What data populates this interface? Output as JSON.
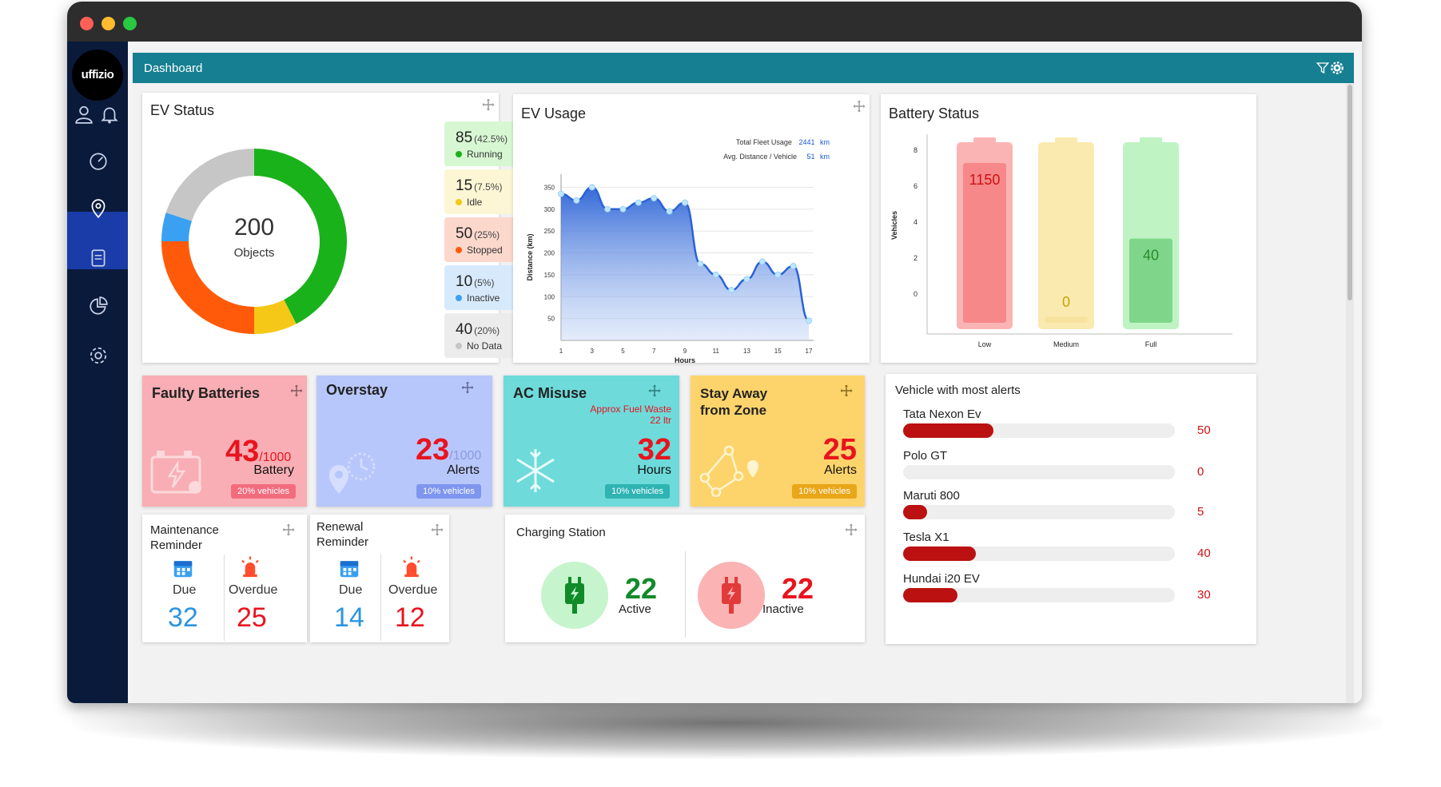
{
  "app": {
    "logo_text": "uffizio",
    "header_title": "Dashboard"
  },
  "colors": {
    "header": "#167f91",
    "sidebar": "#0a1a3a",
    "sidebar_active": "#1a3ca8"
  },
  "sidebar": {
    "items": [
      {
        "icon": "user-icon"
      },
      {
        "icon": "bell-icon"
      },
      {
        "icon": "speedometer-icon"
      },
      {
        "icon": "location-pin-icon",
        "active": true
      },
      {
        "icon": "report-icon"
      },
      {
        "icon": "pie-chart-icon"
      },
      {
        "icon": "gear-icon"
      }
    ]
  },
  "ev_status": {
    "title": "EV Status",
    "total": "200",
    "total_label": "Objects",
    "items": [
      {
        "count": "85",
        "pct": "(42.5%)",
        "label": "Running",
        "value": 85,
        "color": "#1ab21a",
        "bg": "#d7f7d3"
      },
      {
        "count": "15",
        "pct": "(7.5%)",
        "label": "Idle",
        "value": 15,
        "color": "#f5c818",
        "bg": "#fcf6d5"
      },
      {
        "count": "50",
        "pct": "(25%)",
        "label": "Stopped",
        "value": 50,
        "color": "#ff5a0a",
        "bg": "#fcd8cc"
      },
      {
        "count": "10",
        "pct": "(5%)",
        "label": "Inactive",
        "value": 10,
        "color": "#3aa0f2",
        "bg": "#d7eafc"
      },
      {
        "count": "40",
        "pct": "(20%)",
        "label": "No Data",
        "value": 40,
        "color": "#c6c6c6",
        "bg": "#ececec"
      }
    ]
  },
  "ev_usage": {
    "title": "EV Usage",
    "total_label": "Total Fleet Usage",
    "total_value": "2441",
    "total_unit": "km",
    "avg_label": "Avg. Distance / Vehicle",
    "avg_value": "51",
    "avg_unit": "km"
  },
  "battery_status": {
    "title": "Battery Status"
  },
  "faulty_batteries": {
    "title": "Faulty Batteries",
    "value": "43",
    "total": "/1000",
    "label": "Battery",
    "pill": "20% vehicles"
  },
  "overstay": {
    "title": "Overstay",
    "value": "23",
    "total": "/1000",
    "label": "Alerts",
    "pill": "10% vehicles"
  },
  "ac_misuse": {
    "title": "AC Misuse",
    "note1": "Approx Fuel Waste",
    "note2": "22 ltr",
    "value": "32",
    "label": "Hours",
    "pill": "10% vehicles"
  },
  "stay_away": {
    "title1": "Stay Away",
    "title2": "from Zone",
    "value": "25",
    "label": "Alerts",
    "pill": "10% vehicles"
  },
  "maintenance": {
    "title1": "Maintenance",
    "title2": "Reminder",
    "due_label": "Due",
    "due": "32",
    "overdue_label": "Overdue",
    "overdue": "25"
  },
  "renewal": {
    "title1": "Renewal",
    "title2": "Reminder",
    "due_label": "Due",
    "due": "14",
    "overdue_label": "Overdue",
    "overdue": "12"
  },
  "charging": {
    "title": "Charging Station",
    "active": "22",
    "active_label": "Active",
    "inactive": "22",
    "inactive_label": "Inactive"
  },
  "alerts": {
    "title": "Vehicle with most alerts",
    "max": 150,
    "rows": [
      {
        "name": "Tata Nexon Ev",
        "value": "50",
        "n": 50
      },
      {
        "name": "Polo GT",
        "value": "0",
        "n": 0
      },
      {
        "name": "Maruti 800",
        "value": "5",
        "n": 5
      },
      {
        "name": "Tesla X1",
        "value": "40",
        "n": 40
      },
      {
        "name": "Hundai i20 EV",
        "value": "30",
        "n": 30
      }
    ]
  },
  "chart_data": [
    {
      "type": "area",
      "title": "EV Usage",
      "xlabel": "Hours",
      "ylabel": "Distance (km)",
      "x_ticks": [
        1,
        3,
        5,
        7,
        9,
        11,
        13,
        15,
        17
      ],
      "y_ticks": [
        50,
        100,
        150,
        200,
        250,
        300,
        350
      ],
      "ylim": [
        0,
        380
      ],
      "xlim": [
        1,
        17
      ],
      "x": [
        1,
        2,
        3,
        4,
        5,
        6,
        7,
        8,
        9,
        10,
        11,
        12,
        13,
        14,
        15,
        16,
        17
      ],
      "values": [
        335,
        320,
        350,
        300,
        300,
        315,
        325,
        295,
        315,
        175,
        150,
        115,
        140,
        180,
        150,
        170,
        45
      ],
      "color": "#2a62d6"
    },
    {
      "type": "bar",
      "title": "Battery Status",
      "categories": [
        "Low",
        "Medium",
        "Full"
      ],
      "values": [
        1150,
        0,
        40
      ],
      "ylabel": "Vehicles",
      "y_ticks": [
        0,
        2,
        4,
        6,
        8
      ],
      "colors": [
        "#f7888a",
        "#f8e39e",
        "#7fd68a"
      ],
      "track_colors": [
        "#fbb4b4",
        "#faeab0",
        "#bff3c4"
      ],
      "text_colors": [
        "#cc1111",
        "#c9a400",
        "#2a8a2a"
      ]
    }
  ]
}
